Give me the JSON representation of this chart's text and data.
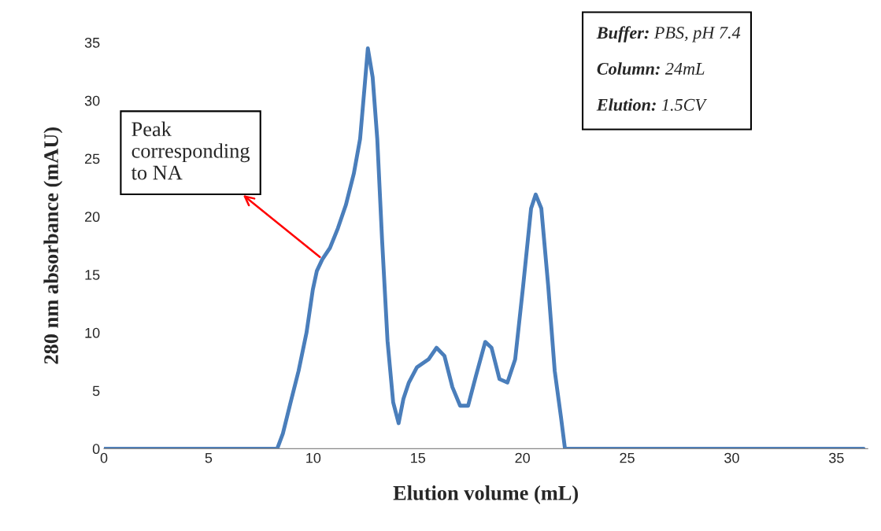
{
  "chart_data": {
    "type": "line",
    "xlabel": "Elution volume (mL)",
    "ylabel": "280 nm absorbance (mAU)",
    "x": [
      0,
      8.28,
      8.55,
      8.92,
      9.3,
      9.68,
      9.98,
      10.17,
      10.43,
      10.8,
      11.18,
      11.56,
      11.94,
      12.24,
      12.46,
      12.61,
      12.84,
      13.06,
      13.29,
      13.55,
      13.82,
      14.08,
      14.31,
      14.57,
      14.95,
      15.51,
      15.89,
      16.27,
      16.65,
      17.02,
      17.4,
      17.78,
      18.22,
      18.52,
      18.9,
      19.28,
      19.65,
      20.03,
      20.41,
      20.63,
      20.9,
      21.23,
      21.54,
      21.84,
      22.03,
      36.3
    ],
    "series": [
      {
        "color": "#4a7ebb",
        "values": [
          0,
          0,
          1.3,
          4,
          6.7,
          10,
          13.7,
          15.3,
          16.3,
          17.3,
          19,
          21,
          23.7,
          26.7,
          31.3,
          34.5,
          32,
          26.7,
          18,
          9.3,
          4,
          2.2,
          4.3,
          5.7,
          7,
          7.7,
          8.7,
          8,
          5.3,
          3.7,
          3.7,
          6.3,
          9.2,
          8.7,
          6,
          5.7,
          7.7,
          14,
          20.7,
          21.9,
          20.7,
          14,
          6.7,
          2.7,
          0,
          0
        ]
      }
    ],
    "xlim": [
      0,
      36.5
    ],
    "ylim": [
      0,
      35
    ],
    "xticks": [
      0,
      5,
      10,
      15,
      20,
      25,
      30,
      35
    ],
    "yticks": [
      0,
      5,
      10,
      15,
      20,
      25,
      30,
      35
    ],
    "grid": false,
    "legend": false,
    "marker": "none",
    "line_style": "solid",
    "annotations": [
      {
        "text": "Peak\ncorresponding\nto NA",
        "x": 10.4,
        "y": 16.4
      },
      "Buffer: PBS, pH 7.4",
      "Column: 24mL",
      "Elution: 1.5CV"
    ]
  }
}
